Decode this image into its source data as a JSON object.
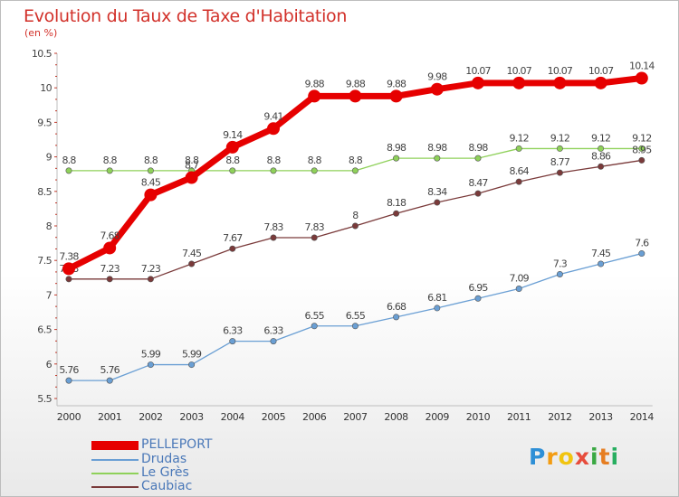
{
  "title": "Evolution du Taux de Taxe d'Habitation",
  "unit_label": "(en %)",
  "brand": {
    "text": "Proxiti",
    "letters": [
      "P",
      "r",
      "o",
      "x",
      "i",
      "t",
      "i"
    ],
    "colors": [
      "#2e8fd6",
      "#f39c12",
      "#f1c40f",
      "#e74c3c",
      "#3aa843",
      "#e67e22",
      "#27ae60"
    ]
  },
  "chart_data": {
    "type": "line",
    "title": "Evolution du Taux de Taxe d'Habitation",
    "xlabel": "",
    "ylabel": "(en %)",
    "x": [
      "2000",
      "2001",
      "2002",
      "2003",
      "2004",
      "2005",
      "2006",
      "2007",
      "2008",
      "2009",
      "2010",
      "2011",
      "2012",
      "2013",
      "2014"
    ],
    "ylim": [
      5.5,
      10.5
    ],
    "yticks": [
      "5.5",
      "6",
      "6.5",
      "7",
      "7.5",
      "8",
      "8.5",
      "9",
      "9.5",
      "10",
      "10.5"
    ],
    "grid": false,
    "legend_placement": "bottom-left",
    "series": [
      {
        "name": "PELLEPORT",
        "color": "#e60000",
        "values": [
          7.38,
          7.68,
          8.45,
          8.7,
          9.14,
          9.41,
          9.88,
          9.88,
          9.88,
          9.98,
          10.07,
          10.07,
          10.07,
          10.07,
          10.14
        ],
        "labels": [
          "7.38",
          "7.68",
          "8.45",
          "8.7",
          "9.14",
          "9.41",
          "9.88",
          "9.88",
          "9.88",
          "9.98",
          "10.07",
          "10.07",
          "10.07",
          "10.07",
          "10.14"
        ]
      },
      {
        "name": "Drudas",
        "color": "#6a9fd4",
        "values": [
          5.76,
          5.76,
          5.99,
          5.99,
          6.33,
          6.33,
          6.55,
          6.55,
          6.68,
          6.81,
          6.95,
          7.09,
          7.3,
          7.45,
          7.6
        ],
        "labels": [
          "5.76",
          "5.76",
          "5.99",
          "5.99",
          "6.33",
          "6.33",
          "6.55",
          "6.55",
          "6.68",
          "6.81",
          "6.95",
          "7.09",
          "7.3",
          "7.45",
          "7.6"
        ]
      },
      {
        "name": "Le Grès",
        "color": "#8fd15a",
        "values": [
          8.8,
          8.8,
          8.8,
          8.8,
          8.8,
          8.8,
          8.8,
          8.8,
          8.98,
          8.98,
          8.98,
          9.12,
          9.12,
          9.12,
          9.12
        ],
        "labels": [
          "8.8",
          "8.8",
          "8.8",
          "8.8",
          "8.8",
          "8.8",
          "8.8",
          "8.8",
          "8.98",
          "8.98",
          "8.98",
          "9.12",
          "9.12",
          "9.12",
          "9.12"
        ]
      },
      {
        "name": "Caubiac",
        "color": "#7a3a3a",
        "values": [
          7.23,
          7.23,
          7.23,
          7.45,
          7.67,
          7.83,
          7.83,
          8.0,
          8.18,
          8.34,
          8.47,
          8.64,
          8.77,
          8.86,
          8.95
        ],
        "labels": [
          "7.23",
          "7.23",
          "7.23",
          "7.45",
          "7.67",
          "7.83",
          "7.83",
          "8",
          "8.18",
          "8.34",
          "8.47",
          "8.64",
          "8.77",
          "8.86",
          "8.95"
        ]
      }
    ]
  }
}
